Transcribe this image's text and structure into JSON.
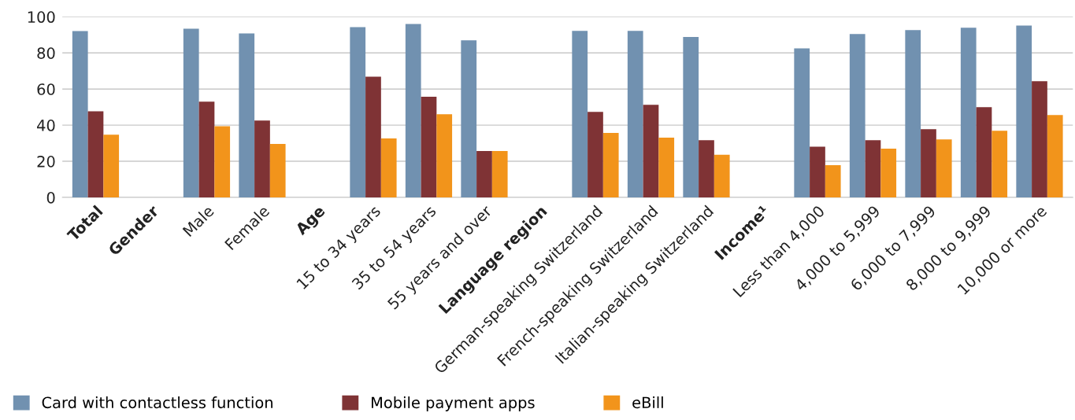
{
  "chart_data": {
    "type": "bar",
    "categories": [
      "Total",
      "Gender",
      "Male",
      "Female",
      "Age",
      "15 to 34 years",
      "35 to 54 years",
      "55 years and over",
      "Language region",
      "German-speaking Switzerland",
      "French-speaking Switzerland",
      "Italian-speaking Switzerland",
      "Income¹",
      "Less than 4,000",
      "4,000 to 5,999",
      "6,000 to 7,999",
      "8,000 to 9,999",
      "10,000 or more"
    ],
    "series": [
      {
        "name": "Card with contactless function",
        "color": "#7191b0",
        "values": [
          92.1,
          null,
          93.4,
          90.8,
          null,
          94.3,
          96.0,
          87.0,
          null,
          92.2,
          92.2,
          88.8,
          null,
          82.5,
          90.5,
          92.6,
          93.9,
          95.2
        ]
      },
      {
        "name": "Mobile payment apps",
        "color": "#7f3335",
        "values": [
          47.7,
          null,
          53.0,
          42.6,
          null,
          66.8,
          55.7,
          25.7,
          null,
          47.3,
          51.3,
          31.7,
          null,
          28.1,
          31.7,
          37.8,
          50.0,
          64.3
        ]
      },
      {
        "name": "eBill",
        "color": "#f2941b",
        "values": [
          34.7,
          null,
          39.4,
          29.6,
          null,
          32.6,
          46.0,
          25.7,
          null,
          35.7,
          33.1,
          23.6,
          null,
          17.9,
          27.0,
          32.1,
          36.9,
          45.6
        ]
      }
    ],
    "ylim": [
      0,
      100
    ],
    "yticks": [
      0,
      20,
      40,
      60,
      80,
      100
    ],
    "grid": "y",
    "legend": "bottom left"
  }
}
